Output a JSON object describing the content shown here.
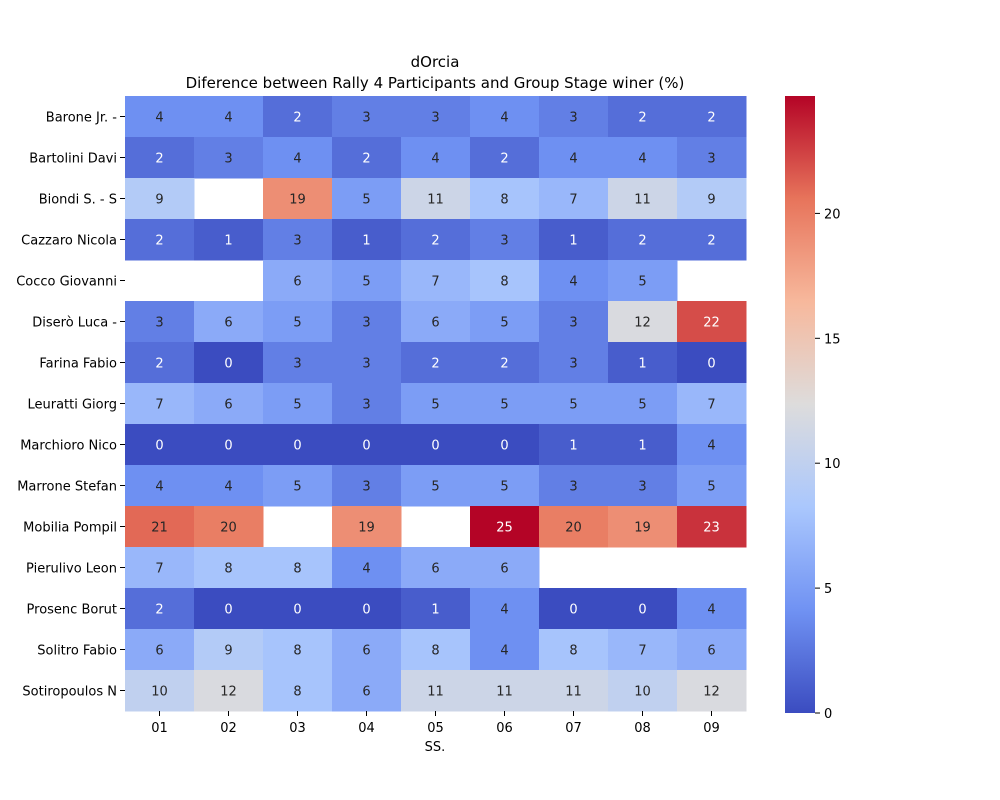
{
  "chart_data": {
    "type": "heatmap",
    "title": "dOrcia",
    "subtitle": "Diference between Rally 4 Participants and Group Stage winer (%)",
    "xlabel": "SS.",
    "ylabel": "",
    "x": [
      "01",
      "02",
      "03",
      "04",
      "05",
      "06",
      "07",
      "08",
      "09"
    ],
    "y": [
      "Barone Jr.  -",
      "Bartolini Davi",
      "Biondi S.  - S",
      "Cazzaro Nicola",
      "Cocco Giovanni",
      "Diserò Luca  -",
      "Farina Fabio",
      "Leuratti Giorg",
      "Marchioro Nico",
      "Marrone Stefan",
      "Mobilia Pompil",
      "Pierulivo Leon",
      "Prosenc Borut",
      "Solitro Fabio",
      "Sotiropoulos N"
    ],
    "values": [
      [
        4,
        4,
        2,
        3,
        3,
        4,
        3,
        2,
        2
      ],
      [
        2,
        3,
        4,
        2,
        4,
        2,
        4,
        4,
        3
      ],
      [
        9,
        null,
        19,
        5,
        11,
        8,
        7,
        11,
        9
      ],
      [
        2,
        1,
        3,
        1,
        2,
        3,
        1,
        2,
        2
      ],
      [
        null,
        null,
        6,
        5,
        7,
        8,
        4,
        5,
        null
      ],
      [
        3,
        6,
        5,
        3,
        6,
        5,
        3,
        12,
        22
      ],
      [
        2,
        0,
        3,
        3,
        2,
        2,
        3,
        1,
        0
      ],
      [
        7,
        6,
        5,
        3,
        5,
        5,
        5,
        5,
        7
      ],
      [
        0,
        0,
        0,
        0,
        0,
        0,
        1,
        1,
        4
      ],
      [
        4,
        4,
        5,
        3,
        5,
        5,
        3,
        3,
        5
      ],
      [
        21,
        20,
        null,
        19,
        null,
        25,
        20,
        19,
        23
      ],
      [
        7,
        8,
        8,
        4,
        6,
        6,
        null,
        null,
        null
      ],
      [
        2,
        0,
        0,
        0,
        1,
        4,
        0,
        0,
        4
      ],
      [
        6,
        9,
        8,
        6,
        8,
        4,
        8,
        7,
        6
      ],
      [
        10,
        12,
        8,
        6,
        11,
        11,
        11,
        10,
        12
      ]
    ],
    "colorbar": {
      "min": 0,
      "max": 24.7,
      "ticks": [
        0,
        5,
        10,
        15,
        20
      ]
    },
    "colormap": "coolwarm",
    "colormap_colors": [
      "#3b4cc0",
      "#7092f3",
      "#aac7fd",
      "#dddcdc",
      "#f7b89c",
      "#e7745b",
      "#b40426"
    ]
  }
}
